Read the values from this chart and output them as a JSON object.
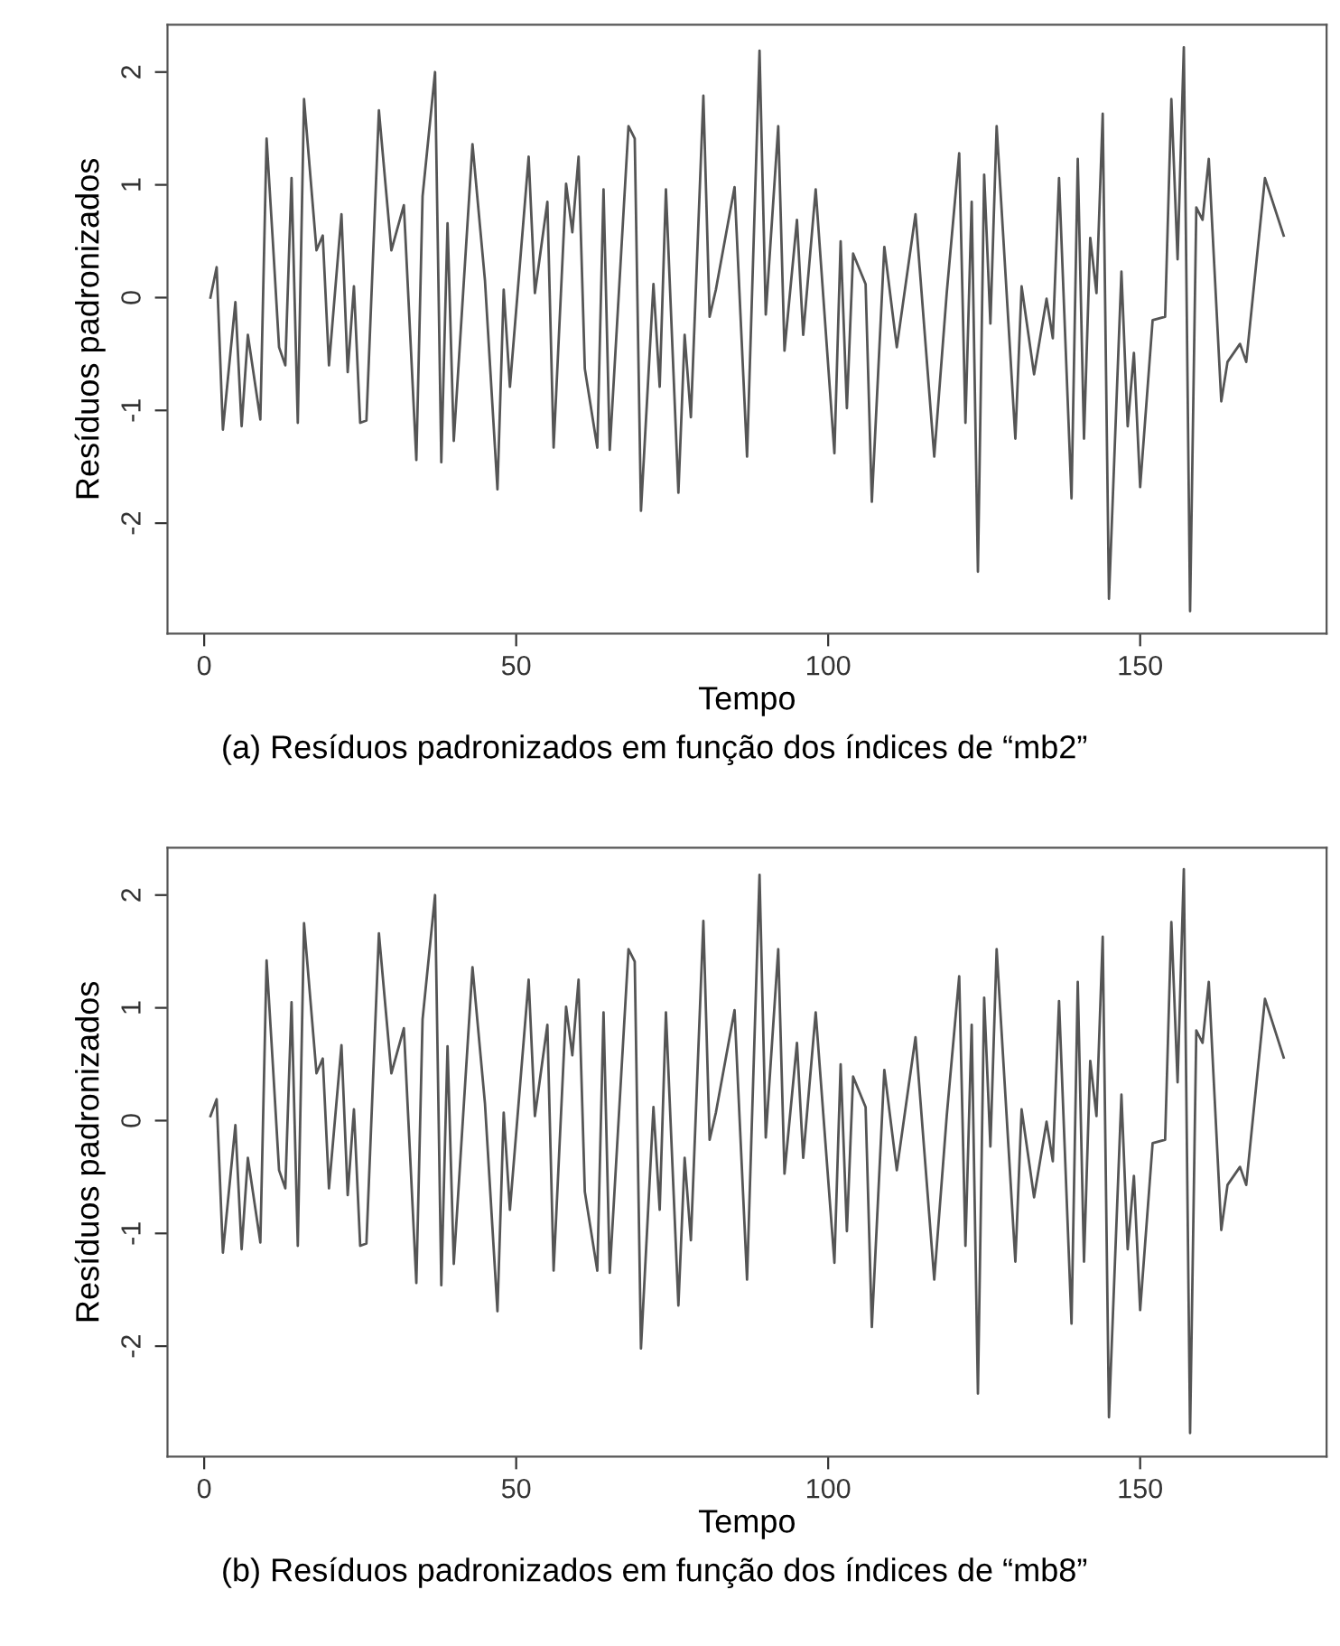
{
  "chart_data": [
    {
      "type": "line",
      "xlabel": "Tempo",
      "ylabel": "Resíduos padronizados",
      "annotations": [
        "(a) Resíduos padronizados em função dos índices de “mb2”"
      ],
      "x": [
        1,
        2,
        3,
        5,
        6,
        7,
        9,
        10,
        11,
        12,
        13,
        14,
        15,
        16,
        18,
        19,
        20,
        22,
        23,
        24,
        25,
        26,
        28,
        30,
        32,
        34,
        35,
        37,
        38,
        39,
        40,
        43,
        45,
        47,
        48,
        49,
        52,
        53,
        55,
        56,
        58,
        59,
        60,
        61,
        63,
        64,
        65,
        68,
        69,
        70,
        72,
        73,
        74,
        76,
        77,
        78,
        80,
        81,
        82,
        85,
        87,
        89,
        90,
        92,
        93,
        95,
        96,
        98,
        101,
        102,
        103,
        104,
        106,
        107,
        109,
        111,
        114,
        117,
        119,
        121,
        122,
        123,
        124,
        125,
        126,
        127,
        130,
        131,
        133,
        135,
        136,
        137,
        139,
        140,
        141,
        142,
        143,
        144,
        145,
        147,
        148,
        149,
        150,
        152,
        154,
        155,
        156,
        157,
        158,
        159,
        160,
        161,
        163,
        164,
        166,
        167,
        170,
        173
      ],
      "series": [
        {
          "color": "#555555",
          "values": [
            0.0,
            0.27,
            -1.17,
            -0.04,
            -1.14,
            -0.33,
            -1.08,
            1.41,
            0.5,
            -0.44,
            -0.6,
            1.06,
            -1.11,
            1.76,
            0.42,
            0.55,
            -0.6,
            0.74,
            -0.66,
            0.1,
            -1.11,
            -1.09,
            1.66,
            0.42,
            0.82,
            -1.44,
            0.9,
            2.0,
            -1.46,
            0.66,
            -1.27,
            1.36,
            0.15,
            -1.7,
            0.07,
            -0.79,
            1.25,
            0.04,
            0.85,
            -1.33,
            1.01,
            0.58,
            1.25,
            -0.63,
            -1.33,
            0.96,
            -1.35,
            1.52,
            1.41,
            -1.89,
            0.12,
            -0.79,
            0.96,
            -1.73,
            -0.33,
            -1.06,
            1.79,
            -0.17,
            0.07,
            0.98,
            -1.41,
            2.19,
            -0.15,
            1.52,
            -0.47,
            0.69,
            -0.33,
            0.96,
            -1.38,
            0.5,
            -0.98,
            0.39,
            0.12,
            -1.81,
            0.45,
            -0.44,
            0.74,
            -1.41,
            0.04,
            1.28,
            -1.11,
            0.85,
            -2.43,
            1.09,
            -0.23,
            1.52,
            -1.25,
            0.1,
            -0.68,
            -0.01,
            -0.36,
            1.06,
            -1.78,
            1.23,
            -1.25,
            0.53,
            0.04,
            1.63,
            -2.67,
            0.23,
            -1.14,
            -0.49,
            -1.68,
            -0.2,
            -0.17,
            1.76,
            0.34,
            2.22,
            -2.78,
            0.8,
            0.69,
            1.23,
            -0.92,
            -0.57,
            -0.41,
            -0.57,
            1.06,
            0.55
          ]
        }
      ],
      "xlim": [
        -5.88,
        179.88
      ],
      "ylim": [
        -2.98,
        2.42
      ],
      "xticks": [
        0,
        50,
        100,
        150
      ],
      "yticks": [
        -2,
        -1,
        0,
        1,
        2
      ],
      "grid": false,
      "legend": false
    },
    {
      "type": "line",
      "xlabel": "Tempo",
      "ylabel": "Resíduos padronizados",
      "annotations": [
        "(b) Resíduos padronizados em função dos índices de “mb8”"
      ],
      "x": [
        1,
        2,
        3,
        5,
        6,
        7,
        9,
        10,
        11,
        12,
        13,
        14,
        15,
        16,
        18,
        19,
        20,
        22,
        23,
        24,
        25,
        26,
        28,
        30,
        32,
        34,
        35,
        37,
        38,
        39,
        40,
        43,
        45,
        47,
        48,
        49,
        52,
        53,
        55,
        56,
        58,
        59,
        60,
        61,
        63,
        64,
        65,
        68,
        69,
        70,
        72,
        73,
        74,
        76,
        77,
        78,
        80,
        81,
        82,
        85,
        87,
        89,
        90,
        92,
        93,
        95,
        96,
        98,
        101,
        102,
        103,
        104,
        106,
        107,
        109,
        111,
        114,
        117,
        119,
        121,
        122,
        123,
        124,
        125,
        126,
        127,
        130,
        131,
        133,
        135,
        136,
        137,
        139,
        140,
        141,
        142,
        143,
        144,
        145,
        147,
        148,
        149,
        150,
        152,
        154,
        155,
        156,
        157,
        158,
        159,
        160,
        161,
        163,
        164,
        166,
        167,
        170,
        173
      ],
      "series": [
        {
          "color": "#555555",
          "values": [
            0.04,
            0.19,
            -1.17,
            -0.04,
            -1.14,
            -0.33,
            -1.08,
            1.42,
            0.5,
            -0.44,
            -0.6,
            1.05,
            -1.11,
            1.75,
            0.42,
            0.55,
            -0.6,
            0.67,
            -0.66,
            0.1,
            -1.11,
            -1.09,
            1.66,
            0.42,
            0.82,
            -1.44,
            0.9,
            2.0,
            -1.46,
            0.66,
            -1.27,
            1.36,
            0.15,
            -1.69,
            0.07,
            -0.79,
            1.25,
            0.04,
            0.85,
            -1.33,
            1.01,
            0.58,
            1.25,
            -0.63,
            -1.33,
            0.96,
            -1.35,
            1.52,
            1.41,
            -2.02,
            0.12,
            -0.79,
            0.96,
            -1.64,
            -0.33,
            -1.06,
            1.77,
            -0.17,
            0.07,
            0.98,
            -1.41,
            2.18,
            -0.15,
            1.52,
            -0.47,
            0.69,
            -0.33,
            0.96,
            -1.26,
            0.5,
            -0.98,
            0.39,
            0.12,
            -1.83,
            0.45,
            -0.44,
            0.74,
            -1.41,
            0.04,
            1.28,
            -1.11,
            0.85,
            -2.42,
            1.09,
            -0.23,
            1.52,
            -1.25,
            0.1,
            -0.68,
            -0.01,
            -0.36,
            1.06,
            -1.8,
            1.23,
            -1.25,
            0.53,
            0.04,
            1.63,
            -2.63,
            0.23,
            -1.14,
            -0.49,
            -1.68,
            -0.2,
            -0.17,
            1.76,
            0.34,
            2.23,
            -2.77,
            0.8,
            0.69,
            1.23,
            -0.97,
            -0.57,
            -0.41,
            -0.57,
            1.08,
            0.56
          ]
        }
      ],
      "xlim": [
        -5.88,
        179.88
      ],
      "ylim": [
        -2.98,
        2.42
      ],
      "xticks": [
        0,
        50,
        100,
        150
      ],
      "yticks": [
        -2,
        -1,
        0,
        1,
        2
      ],
      "grid": false,
      "legend": false
    }
  ]
}
